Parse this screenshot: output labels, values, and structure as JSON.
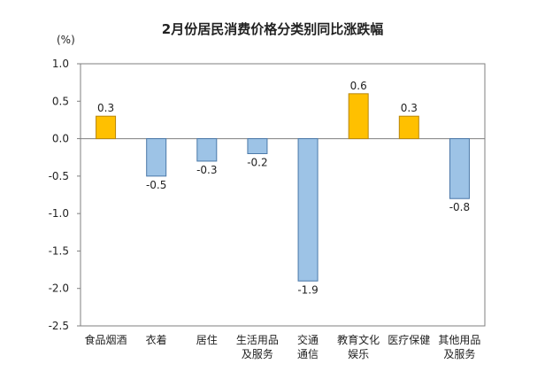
{
  "chart_data": {
    "type": "bar",
    "title": "2月份居民消费价格分类别同比涨跌幅",
    "unit": "(%)",
    "categories": [
      [
        "食品烟酒"
      ],
      [
        "衣着"
      ],
      [
        "居住"
      ],
      [
        "生活用品",
        "及服务"
      ],
      [
        "交通",
        "通信"
      ],
      [
        "教育文化",
        "娱乐"
      ],
      [
        "医疗保健"
      ],
      [
        "其他用品",
        "及服务"
      ]
    ],
    "values": [
      0.3,
      -0.5,
      -0.3,
      -0.2,
      -1.9,
      0.6,
      0.3,
      -0.8
    ],
    "data_labels": [
      "0.3",
      "-0.5",
      "-0.3",
      "-0.2",
      "-1.9",
      "0.6",
      "0.3",
      "-0.8"
    ],
    "ylim": [
      -2.5,
      1.0
    ],
    "yticks": [
      1.0,
      0.5,
      0.0,
      -0.5,
      -1.0,
      -1.5,
      -2.0,
      -2.5
    ],
    "ytick_labels": [
      "1.0",
      "0.5",
      "0.0",
      "-0.5",
      "-1.0",
      "-1.5",
      "-2.0",
      "-2.5"
    ],
    "colors": {
      "positive_fill": "#FFC000",
      "positive_stroke": "#B8860B",
      "negative_fill": "#9DC3E6",
      "negative_stroke": "#4A78A8"
    },
    "grid": false
  }
}
